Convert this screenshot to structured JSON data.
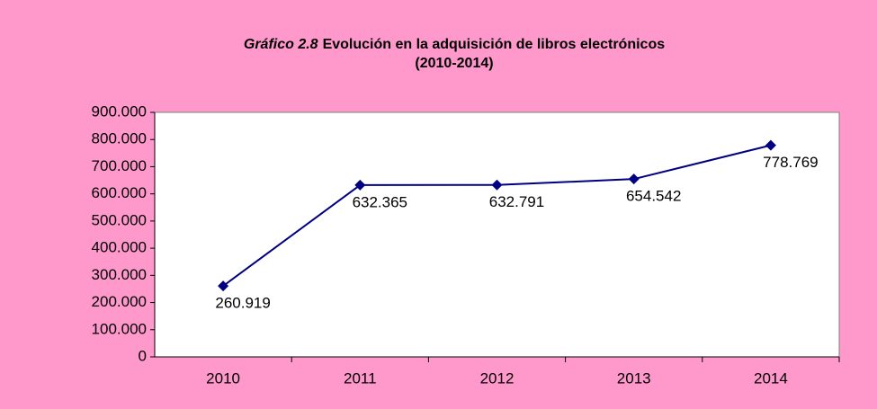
{
  "chart_data": {
    "type": "line",
    "title_label": "Gráfico 2.8",
    "title": "Evolución en la adquisición de libros electrónicos",
    "subtitle": "(2010-2014)",
    "categories": [
      "2010",
      "2011",
      "2012",
      "2013",
      "2014"
    ],
    "series": [
      {
        "color": "#000080",
        "values": [
          260919,
          632365,
          632791,
          654542,
          778769
        ],
        "value_labels": [
          "260.919",
          "632.365",
          "632.791",
          "654.542",
          "778.769"
        ]
      }
    ],
    "ylim": [
      0,
      900000
    ],
    "yticks": [
      0,
      {
        "value": 100000,
        "label": "100.000"
      },
      {
        "value": 200000,
        "label": "200.000"
      },
      {
        "value": 300000,
        "label": "300.000"
      },
      {
        "value": 400000,
        "label": "400.000"
      },
      {
        "value": 500000,
        "label": "500.000"
      },
      {
        "value": 600000,
        "label": "600.000"
      },
      {
        "value": 700000,
        "label": "700.000"
      },
      {
        "value": 800000,
        "label": "800.000"
      },
      {
        "value": 900000,
        "label": "900.000"
      }
    ],
    "grid": false
  }
}
